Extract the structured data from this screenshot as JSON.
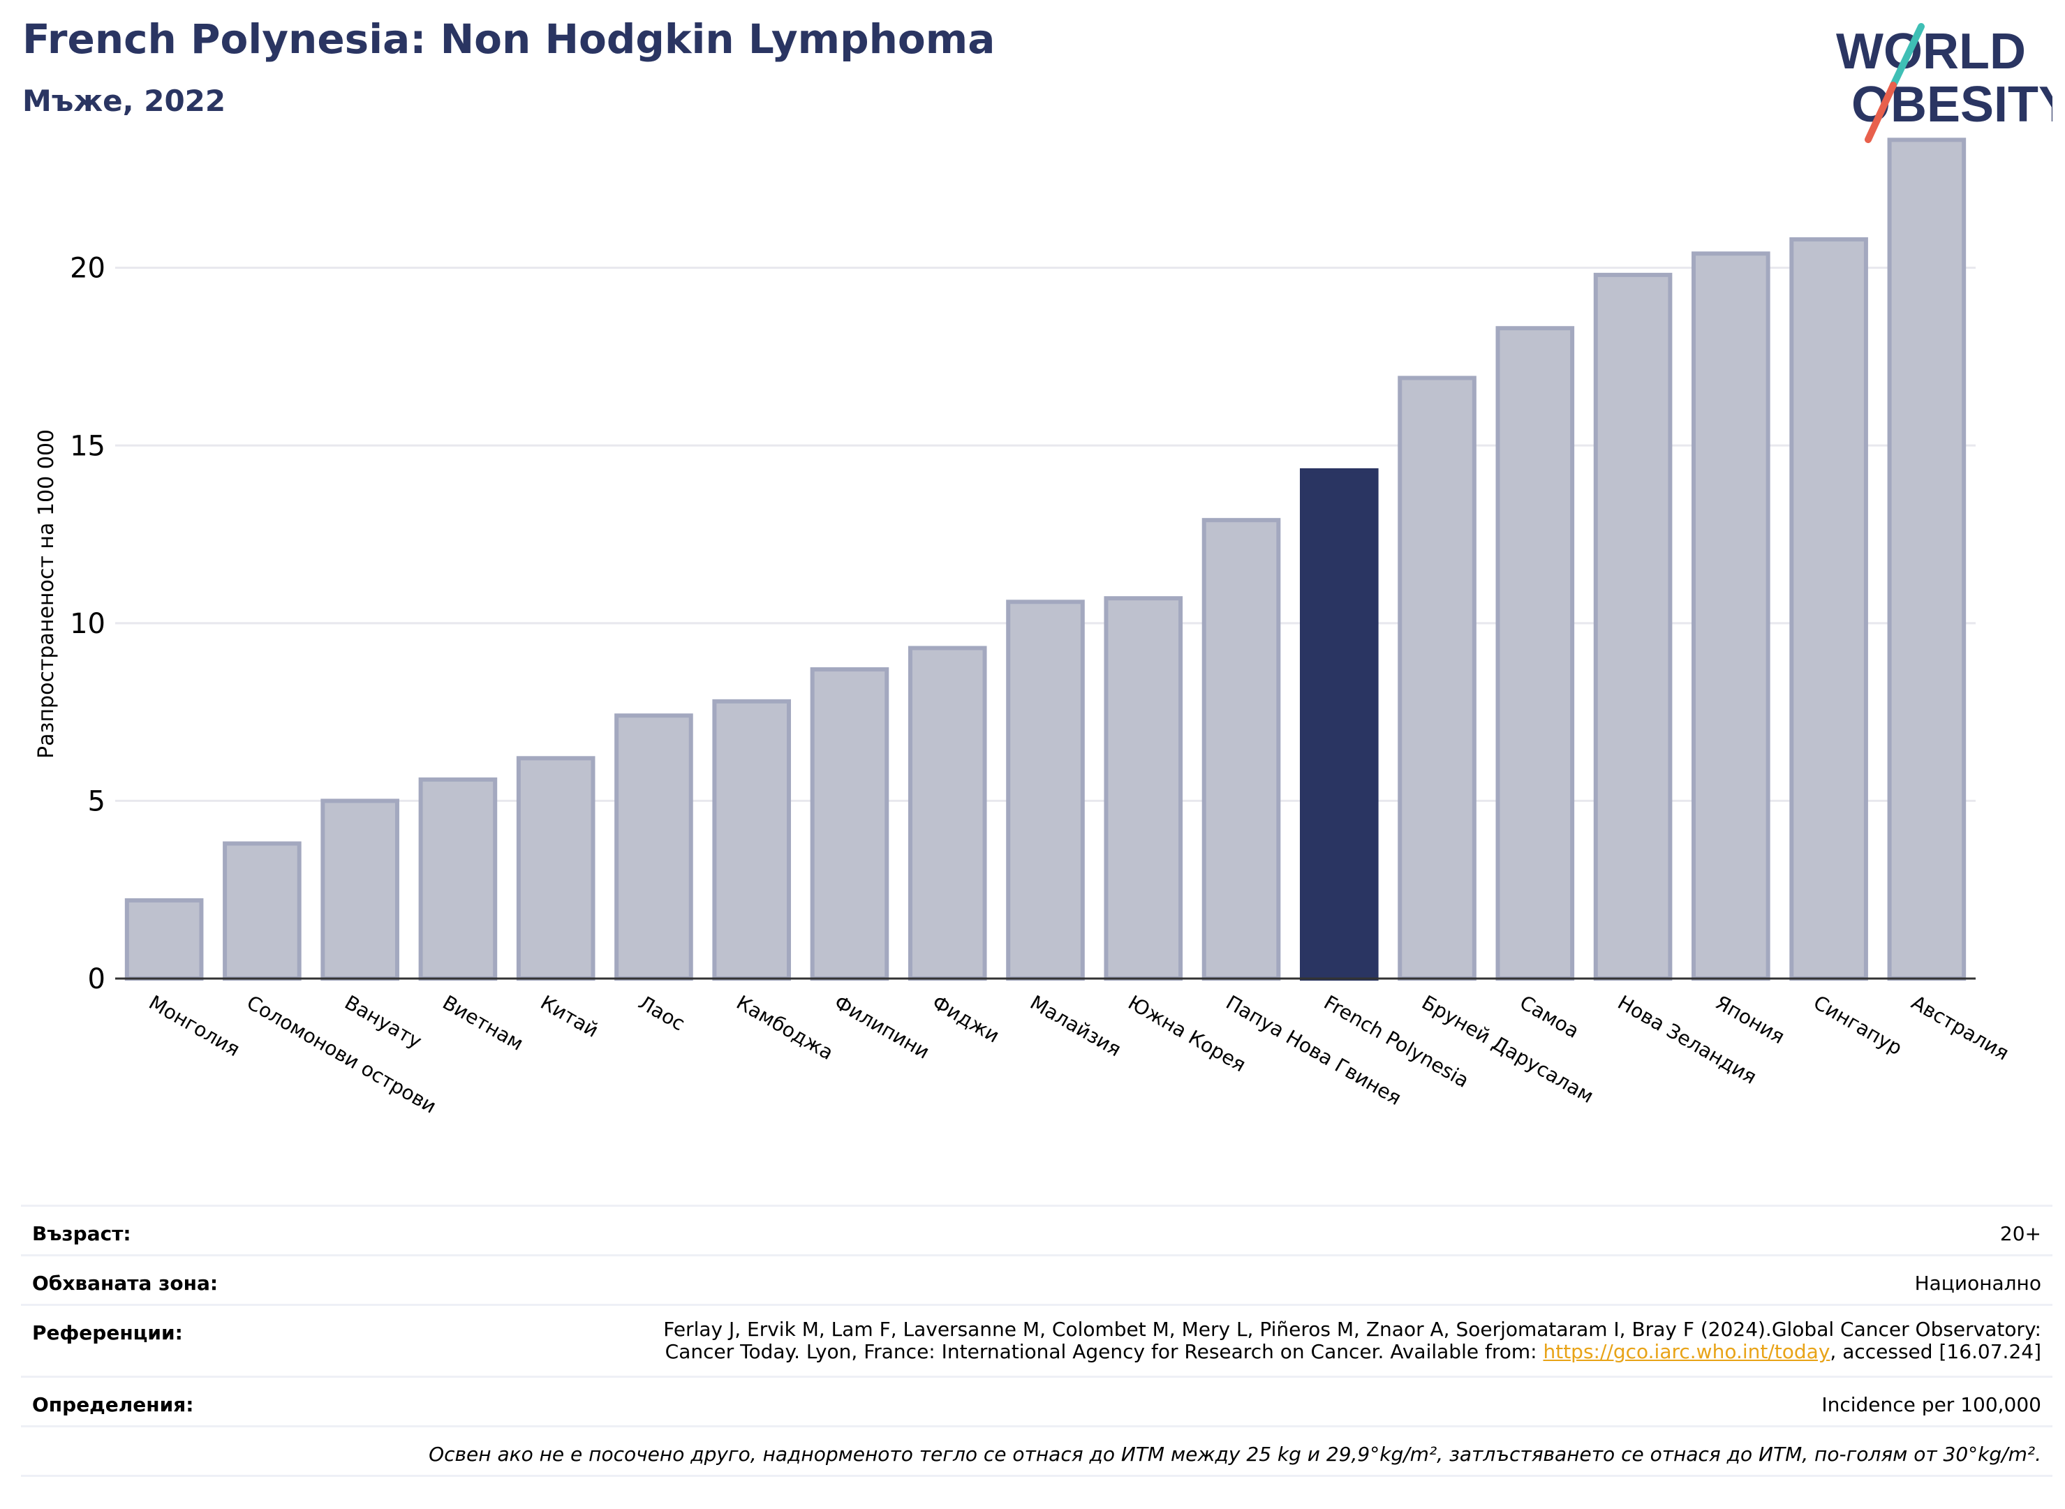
{
  "header": {
    "title": "French Polynesia: Non Hodgkin Lymphoma",
    "subtitle": "Мъже, 2022"
  },
  "logo": {
    "line1": "WORLD",
    "line2": "OBESITY",
    "text_color": "#2a3562",
    "slash_color_top": "#3fbfb5",
    "slash_color_bottom": "#e8604c"
  },
  "chart_data": {
    "type": "bar",
    "ylabel": "Разпространеност  на 100 000",
    "xlabel": "",
    "ylim": [
      0,
      24
    ],
    "yticks": [
      0,
      5,
      10,
      15,
      20
    ],
    "grid": true,
    "categories": [
      "Монголия",
      "Соломонови острови",
      "Вануату",
      "Виетнам",
      "Китай",
      "Лаос",
      "Камбоджа",
      "Филипини",
      "Фиджи",
      "Малайзия",
      "Южна Корея",
      "Папуа Нова Гвинея",
      "French Polynesia",
      "Бруней Дарусалам",
      "Самоа",
      "Нова Зеландия",
      "Япония",
      "Сингапур",
      "Австралия"
    ],
    "values": [
      2.2,
      3.8,
      5.0,
      5.6,
      6.2,
      7.4,
      7.8,
      8.7,
      9.3,
      10.6,
      10.7,
      12.9,
      14.3,
      16.9,
      18.3,
      19.8,
      20.4,
      20.8,
      23.6
    ],
    "highlight": "French Polynesia",
    "colors": {
      "bar": "#bec1ce",
      "bar_edge": "#a3a8bf",
      "highlight": "#2a3562",
      "grid": "#e8e8ee",
      "axis": "#333333"
    }
  },
  "meta": {
    "age_label": "Възраст:",
    "age_value": "20+",
    "area_label": "Обхваната зона:",
    "area_value": "Национално",
    "ref_label": "Референции:",
    "ref_line1": "Ferlay J, Ervik M, Lam F, Laversanne M, Colombet M, Mery L, Piñeros M, Znaor A, Soerjomataram I, Bray F (2024).Global Cancer Observatory:",
    "ref_line2_pre": "Cancer Today. Lyon, France: International Agency for Research on Cancer. Available from: ",
    "ref_link": "https://gco.iarc.who.int/today",
    "ref_line2_post": ", accessed [16.07.24]",
    "def_label": "Определения:",
    "def_value": "Incidence per 100,000",
    "note": "Освен ако не е посочено друго, наднорменото тегло се отнася до ИТМ между 25 kg и 29,9°kg/m², затлъстяването се отнася до ИТМ, по-голям от 30°kg/m²."
  }
}
